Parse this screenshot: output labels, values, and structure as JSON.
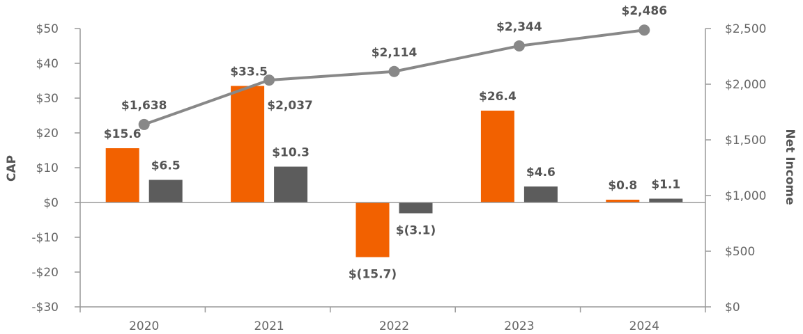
{
  "chart_data": {
    "type": "bar",
    "categories": [
      "2020",
      "2021",
      "2022",
      "2023",
      "2024"
    ],
    "left_axis": {
      "label": "CAP",
      "ylim": [
        -30,
        50
      ],
      "ticks": [
        -30,
        -20,
        -10,
        0,
        10,
        20,
        30,
        40,
        50
      ],
      "tick_labels": [
        "-$30",
        "-$20",
        "-$10",
        "$0",
        "$10",
        "$20",
        "$30",
        "$40",
        "$50"
      ]
    },
    "right_axis": {
      "label": "Net Income",
      "ylim": [
        0,
        2500
      ],
      "ticks": [
        0,
        500,
        1000,
        1500,
        2000,
        2500
      ],
      "tick_labels": [
        "$0",
        "$500",
        "$1,000",
        "$1,500",
        "$2,000",
        "$2,500"
      ]
    },
    "series": [
      {
        "type": "bar",
        "axis": "left",
        "color": "#f26100",
        "values": [
          15.6,
          33.5,
          -15.7,
          26.4,
          0.8
        ],
        "labels": [
          "$15.6",
          "$33.5",
          "$(15.7)",
          "$26.4",
          "$0.8"
        ]
      },
      {
        "type": "bar",
        "axis": "left",
        "color": "#5c5c5c",
        "values": [
          6.5,
          10.3,
          -3.1,
          4.6,
          1.1
        ],
        "labels": [
          "$6.5",
          "$10.3",
          "$(3.1)",
          "$4.6",
          "$1.1"
        ]
      },
      {
        "type": "line",
        "axis": "right",
        "color": "#888888",
        "values": [
          1638,
          2037,
          2114,
          2344,
          2486
        ],
        "labels": [
          "$1,638",
          "$2,037",
          "$2,114",
          "$2,344",
          "$2,486"
        ]
      }
    ],
    "grid": false,
    "legend": "none"
  }
}
